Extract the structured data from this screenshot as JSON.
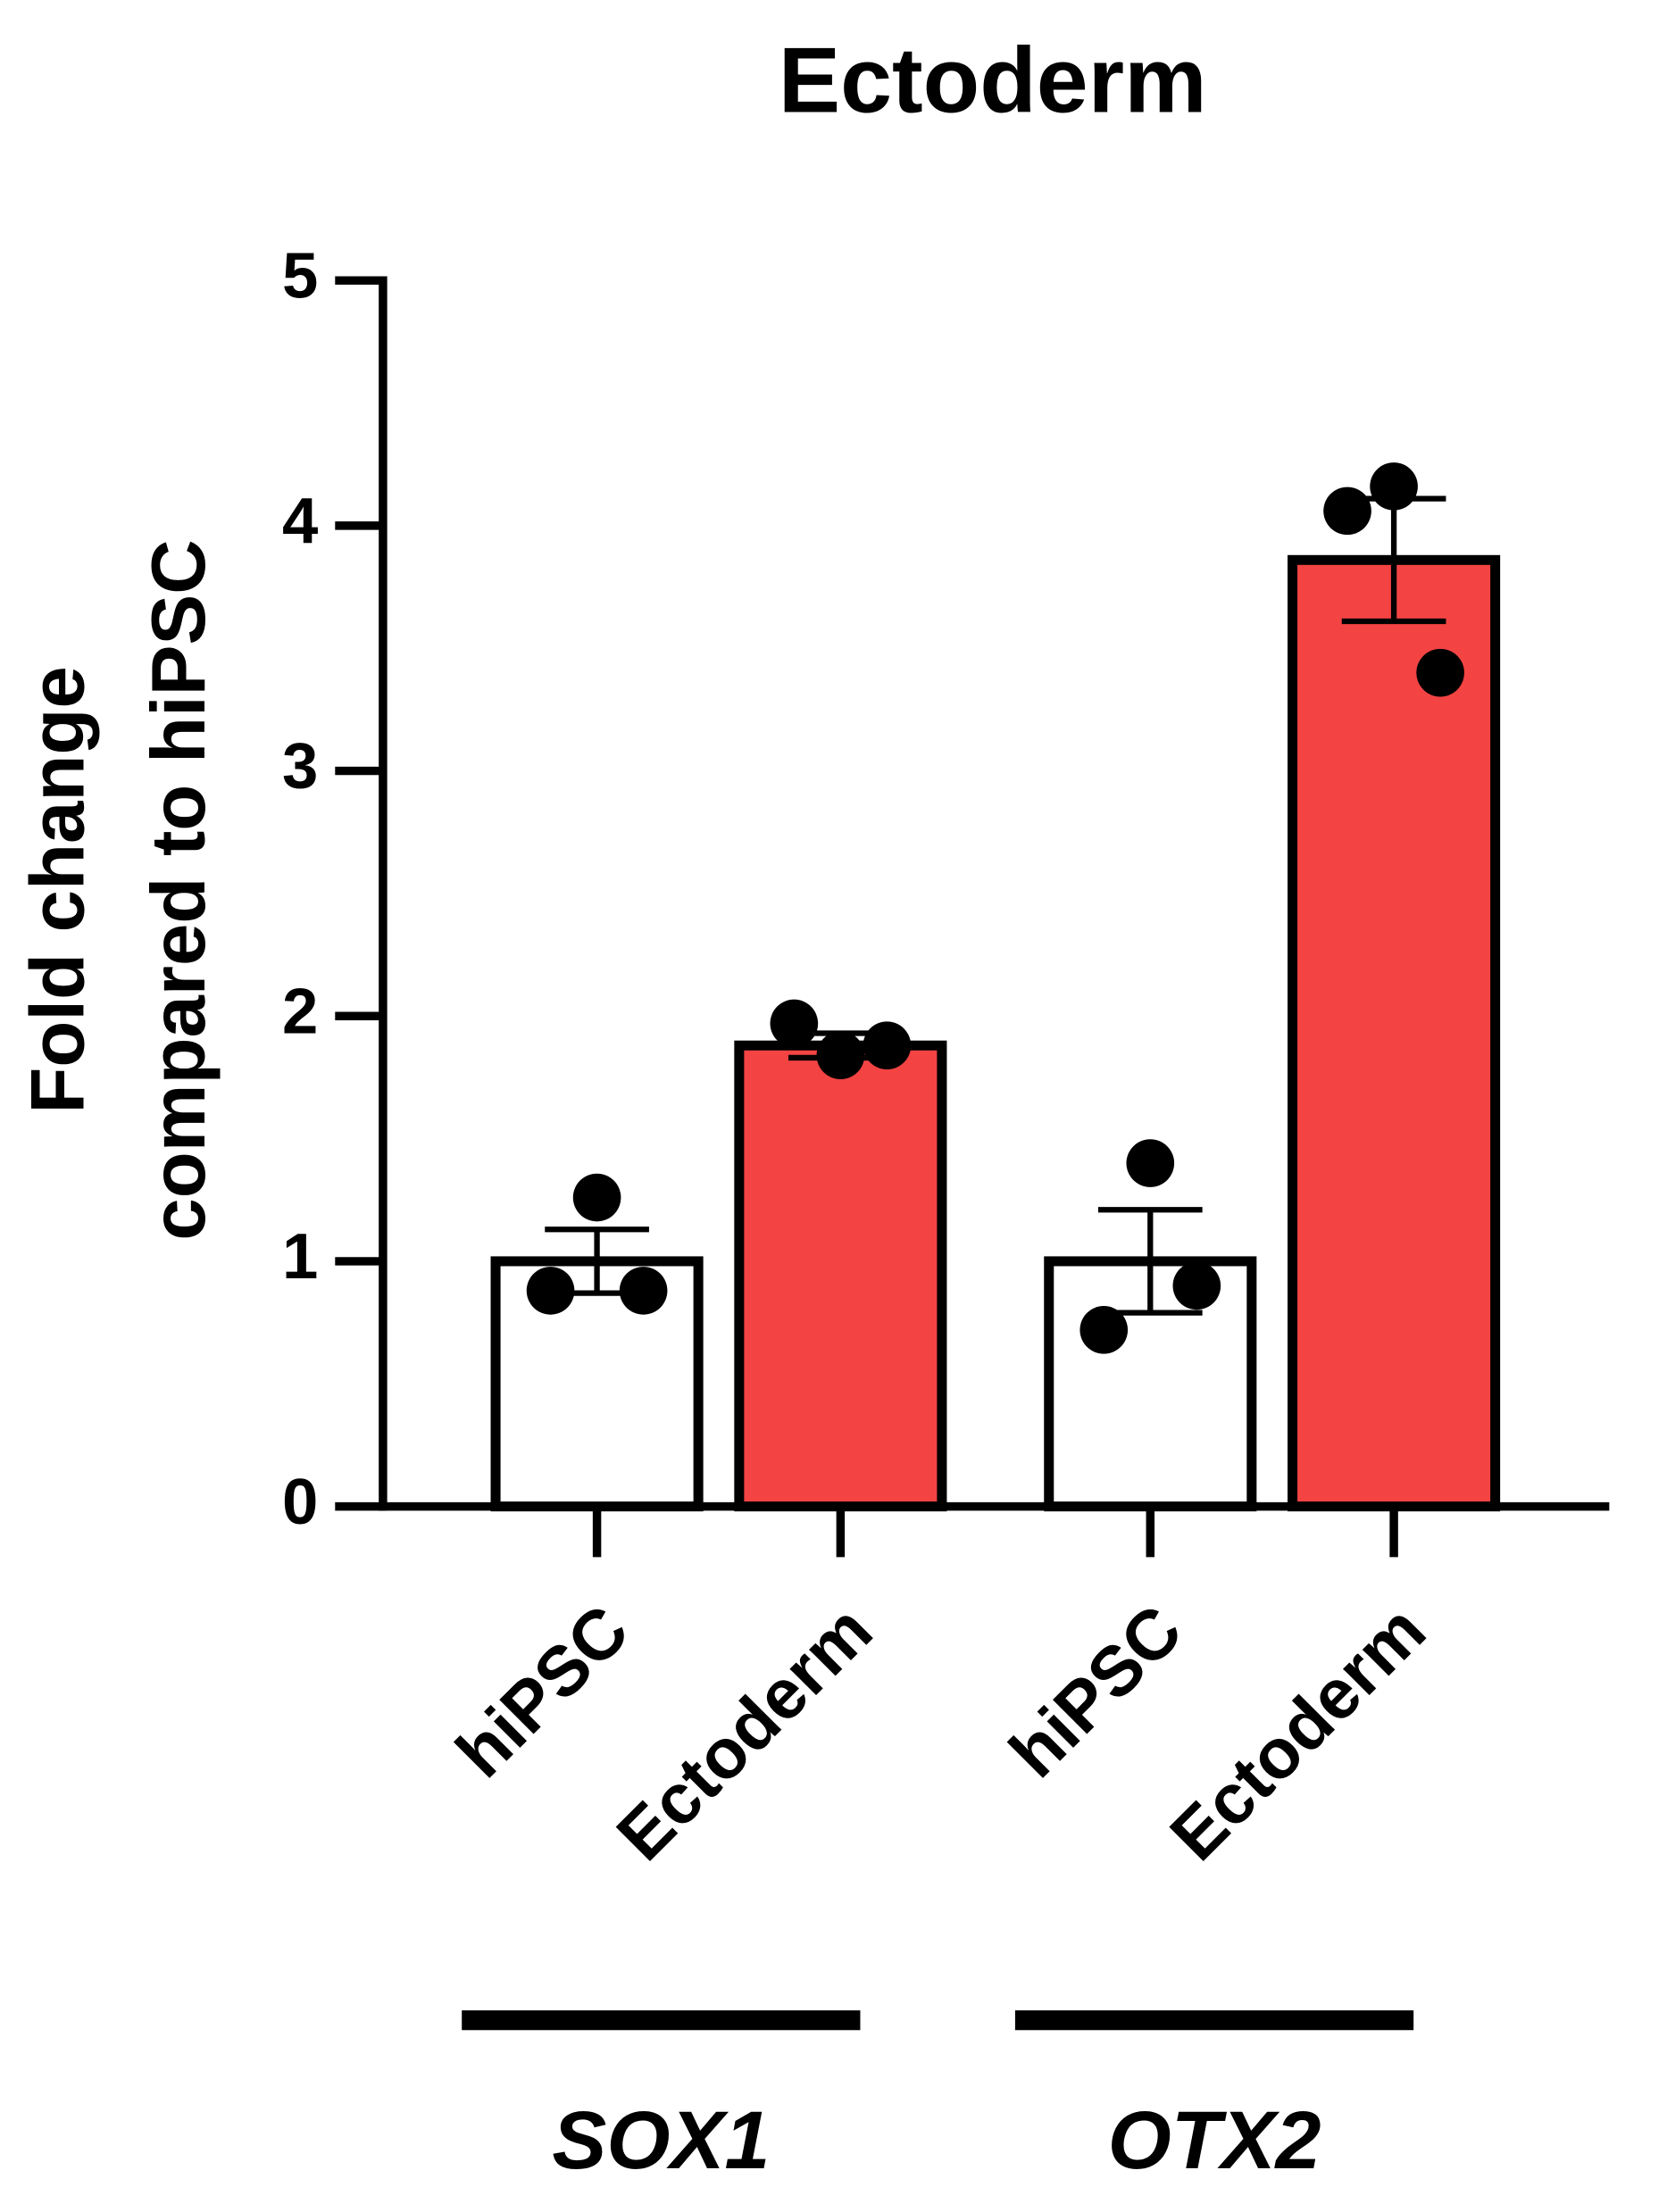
{
  "chart_data": {
    "type": "bar",
    "title": "Ectoderm",
    "ylabel": [
      "Fold change",
      "compared to hiPSC"
    ],
    "categories": [
      "hiPSC",
      "Ectoderm",
      "hiPSC",
      "Ectoderm"
    ],
    "groups": [
      "SOX1",
      "OTX2"
    ],
    "values": [
      1.0,
      1.88,
      1.0,
      3.86
    ],
    "errors": [
      0.13,
      0.05,
      0.21,
      0.25
    ],
    "points": [
      [
        1.26,
        0.88,
        0.88
      ],
      [
        1.84,
        1.97,
        1.88
      ],
      [
        1.4,
        0.72,
        0.9
      ],
      [
        4.16,
        4.06,
        3.4
      ]
    ],
    "colors": [
      "#ffffff",
      "#f44343",
      "#ffffff",
      "#f44343"
    ],
    "ylim": [
      0,
      5
    ],
    "yticks": [
      0,
      1,
      2,
      3,
      4,
      5
    ]
  }
}
